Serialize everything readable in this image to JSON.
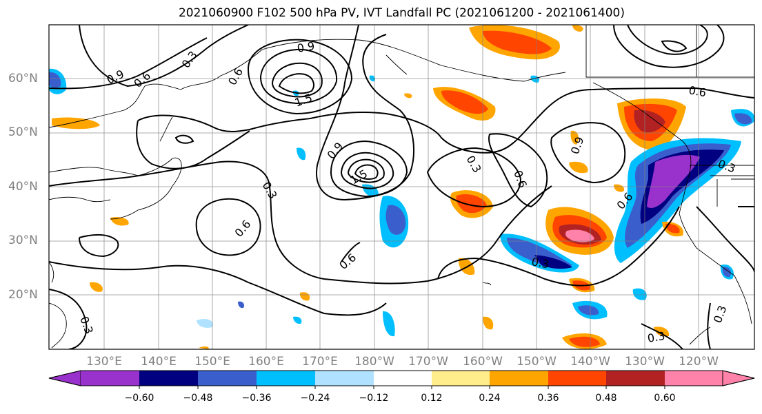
{
  "title": "2021060900 F102 500 hPa PV, IVT Landfall PC (2021061200 - 2021061400)",
  "lat_labels": [
    "60°N",
    "50°N",
    "40°N",
    "30°N",
    "20°N"
  ],
  "lon_labels": [
    "130°E",
    "140°E",
    "150°E",
    "160°E",
    "170°E",
    "180°W",
    "170°W",
    "160°W",
    "150°W",
    "140°W",
    "130°W",
    "120°W"
  ],
  "contour_labels": [
    "0.9",
    "0.6",
    "0.3",
    "0.9",
    "1.5",
    "0.6",
    "0.6",
    "0.9",
    "0.3",
    "1.5",
    "0.3",
    "0.6",
    "0.6",
    "0.6",
    "0.3",
    "0.3",
    "0.3",
    "0.3",
    "0.9",
    "0.6",
    "0.3"
  ],
  "colorbar": {
    "colors": [
      "#9932cc",
      "#000080",
      "#3a5fcd",
      "#00bfff",
      "#b0e2ff",
      "#ffffff",
      "#ffec8b",
      "#ffa500",
      "#ff4500",
      "#b22222",
      "#ff82ab"
    ],
    "ticks": [
      "−0.60",
      "−0.48",
      "−0.36",
      "−0.24",
      "−0.12",
      "0.12",
      "0.24",
      "0.36",
      "0.48",
      "0.60"
    ]
  },
  "colors": {
    "contour": "#000000",
    "grid": "#808080",
    "coast": "#000000"
  }
}
